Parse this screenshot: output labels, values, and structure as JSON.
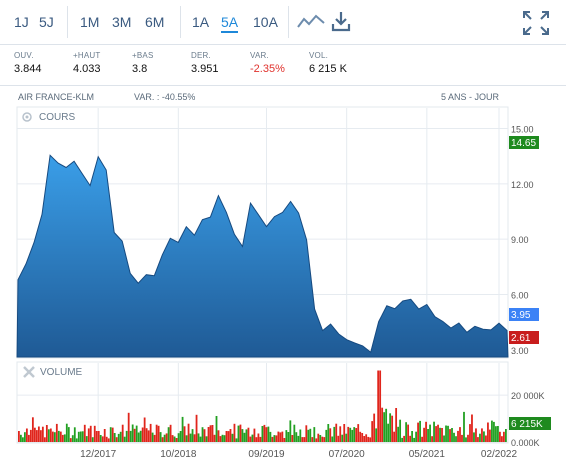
{
  "toolbar": {
    "periods": [
      "1J",
      "5J",
      "1M",
      "3M",
      "6M",
      "1A",
      "5A",
      "10A"
    ],
    "active_period": "5A",
    "icons": [
      "line-chart-icon",
      "download-icon",
      "fullscreen-icon"
    ]
  },
  "stats": [
    {
      "label": "OUV.",
      "value": "3.844"
    },
    {
      "label": "+HAUT",
      "value": "4.033"
    },
    {
      "label": "+BAS",
      "value": "3.8"
    },
    {
      "label": "DER.",
      "value": "3.951"
    },
    {
      "label": "VAR.",
      "value": "-2.35%",
      "negative": true
    },
    {
      "label": "VOL.",
      "value": "6 215 K"
    }
  ],
  "chart_header": {
    "name": "AIR FRANCE-KLM",
    "variation": "VAR. : -40.55%",
    "range": "5 ANS - JOUR"
  },
  "colors": {
    "accent": "#1e88d9",
    "area_top": "#3a9ee8",
    "area_bottom": "#1f5a95",
    "line": "#164a80",
    "badge_high": "#1e8a1e",
    "badge_last": "#3b82f6",
    "badge_low": "#c81d1d",
    "vol_up": "#22a022",
    "vol_down": "#e0251c"
  },
  "chart_data": [
    {
      "type": "area",
      "panel_label": "COURS",
      "ylim": [
        2.61,
        14.65
      ],
      "yticks": [
        3.0,
        6.0,
        9.0,
        12.0,
        15.0
      ],
      "ytick_labels": [
        "3.00",
        "6.00",
        "9.00",
        "12.00",
        "15.00"
      ],
      "xtick_labels": [
        "12/2017",
        "10/2018",
        "09/2019",
        "07/2020",
        "05/2021",
        "02/2022"
      ],
      "x": [
        "2017-02",
        "2017-03",
        "2017-04",
        "2017-05",
        "2017-06",
        "2017-07",
        "2017-08",
        "2017-09",
        "2017-10",
        "2017-11",
        "2017-12",
        "2018-01",
        "2018-02",
        "2018-03",
        "2018-04",
        "2018-05",
        "2018-06",
        "2018-07",
        "2018-08",
        "2018-09",
        "2018-10",
        "2018-11",
        "2018-12",
        "2019-01",
        "2019-02",
        "2019-03",
        "2019-04",
        "2019-05",
        "2019-06",
        "2019-07",
        "2019-08",
        "2019-09",
        "2019-10",
        "2019-11",
        "2019-12",
        "2020-01",
        "2020-02",
        "2020-03",
        "2020-04",
        "2020-05",
        "2020-06",
        "2020-07",
        "2020-08",
        "2020-09",
        "2020-10",
        "2020-11",
        "2020-12",
        "2021-01",
        "2021-02",
        "2021-03",
        "2021-04",
        "2021-05",
        "2021-06",
        "2021-07",
        "2021-08",
        "2021-09",
        "2021-10",
        "2021-11",
        "2021-12",
        "2022-01",
        "2022-02",
        "2022-03"
      ],
      "values": [
        6.8,
        7.6,
        8.7,
        10.2,
        13.4,
        13.0,
        12.8,
        13.2,
        12.6,
        12.0,
        13.6,
        12.9,
        9.5,
        9.0,
        7.2,
        6.6,
        7.0,
        6.9,
        8.0,
        8.9,
        8.7,
        9.6,
        9.2,
        10.1,
        10.3,
        11.5,
        10.6,
        9.4,
        8.7,
        11.0,
        10.3,
        9.6,
        10.1,
        10.3,
        10.9,
        10.3,
        8.9,
        5.2,
        4.1,
        4.5,
        4.0,
        3.7,
        3.5,
        3.3,
        2.9,
        4.5,
        5.3,
        5.1,
        5.5,
        5.6,
        5.1,
        5.4,
        4.8,
        4.6,
        4.3,
        4.6,
        4.1,
        4.4,
        4.2,
        4.1,
        4.4,
        3.95
      ],
      "badges": {
        "high": "14.65",
        "last": "3.95",
        "low": "2.61"
      }
    },
    {
      "type": "bar",
      "panel_label": "VOLUME",
      "ylim": [
        0,
        32000
      ],
      "yticks": [
        0,
        20000
      ],
      "ytick_labels": [
        "0.000K",
        "20 000K"
      ],
      "last_volume": "6 215K"
    }
  ]
}
